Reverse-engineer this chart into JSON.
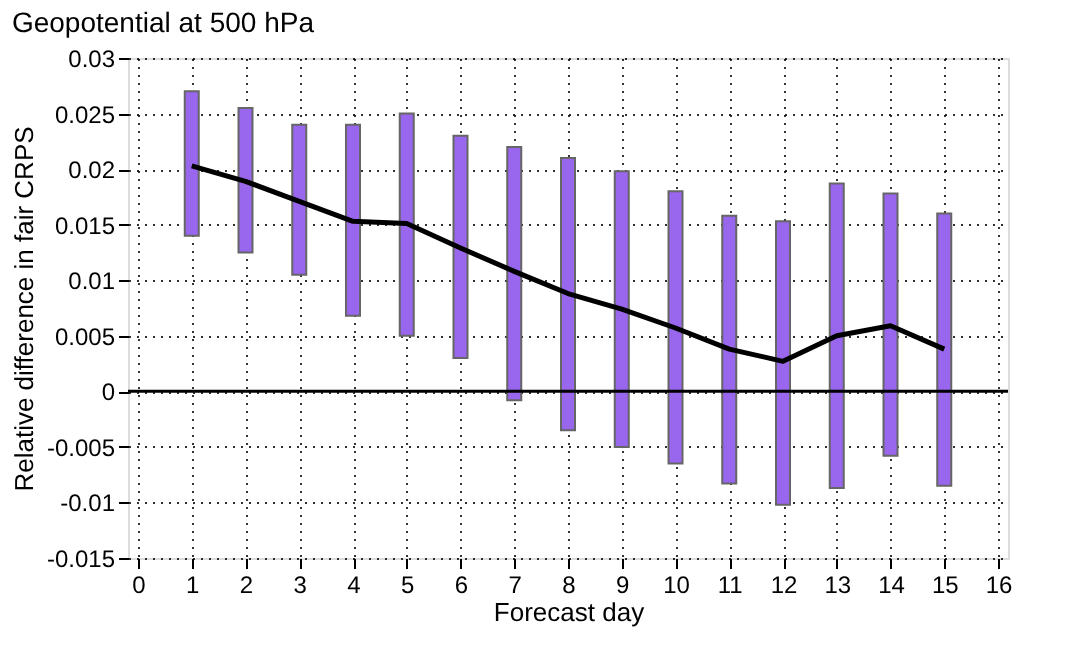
{
  "chart_data": {
    "type": "line",
    "title": "Geopotential at 500 hPa",
    "xlabel": "Forecast day",
    "ylabel": "Relative difference in fair CRPS",
    "x": [
      1,
      2,
      3,
      4,
      5,
      6,
      7,
      8,
      9,
      10,
      11,
      12,
      13,
      14,
      15
    ],
    "series": [
      {
        "type": "bar",
        "color": "#9966ee",
        "base": [
          0.014,
          0.0125,
          0.0105,
          0.0068,
          0.005,
          0.003,
          -0.0008,
          -0.0035,
          -0.005,
          -0.0065,
          -0.0083,
          -0.0102,
          -0.0087,
          -0.0058,
          -0.0085
        ],
        "values": [
          0.013,
          0.013,
          0.0135,
          0.0172,
          0.02,
          0.02,
          0.0228,
          0.0245,
          0.0248,
          0.0245,
          0.0241,
          0.0255,
          0.0274,
          0.0236,
          0.0245
        ]
      },
      {
        "color": "#000000",
        "values": [
          0.0203,
          0.0189,
          0.0171,
          0.0153,
          0.0151,
          0.0129,
          0.0108,
          0.0088,
          0.0074,
          0.0057,
          0.0038,
          0.0027,
          0.005,
          0.0059,
          0.0038
        ]
      }
    ],
    "xlim": [
      0,
      16
    ],
    "xticks": [
      0,
      1,
      2,
      3,
      4,
      5,
      6,
      7,
      8,
      9,
      10,
      11,
      12,
      13,
      14,
      15,
      16
    ],
    "ylim": [
      -0.015,
      0.03
    ],
    "yticks": [
      -0.015,
      -0.01,
      -0.005,
      0,
      0.005,
      0.01,
      0.015,
      0.02,
      0.025,
      0.03
    ],
    "ref_lines": [
      {
        "axis": "y",
        "value": 0,
        "color": "#000000"
      }
    ],
    "grid": true,
    "line_style": "solid",
    "marker": "none"
  }
}
